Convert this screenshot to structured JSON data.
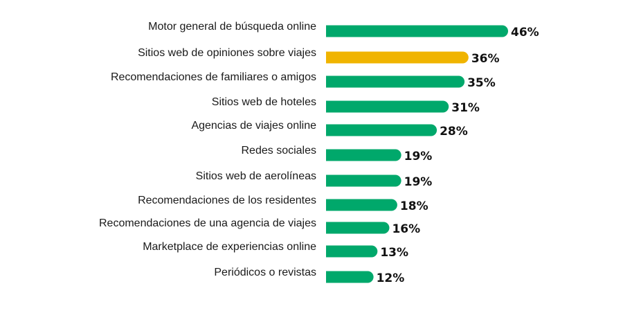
{
  "colors": {
    "default_bar": "#00a86b",
    "highlight_bar": "#f0b400",
    "text": "#1a1a1a"
  },
  "chart_data": {
    "type": "bar",
    "orientation": "horizontal",
    "title": "",
    "xlabel": "",
    "ylabel": "",
    "grid": false,
    "legend": "none",
    "xlim": [
      0,
      46
    ],
    "value_suffix": "%",
    "highlight_index": 1,
    "categories": [
      "Motor general de búsqueda online",
      "Sitios web de opiniones sobre viajes",
      "Recomendaciones de familiares o amigos",
      "Sitios web de hoteles",
      "Agencias de viajes online",
      "Redes sociales",
      "Sitios web de aerolíneas",
      "Recomendaciones de los residentes",
      "Recomendaciones de una agencia de viajes",
      "Marketplace de experiencias online",
      "Periódicos o revistas"
    ],
    "values": [
      46,
      36,
      35,
      31,
      28,
      19,
      19,
      18,
      16,
      13,
      12
    ],
    "value_labels": [
      "46%",
      "36%",
      "35%",
      "31%",
      "28%",
      "19%",
      "19%",
      "18%",
      "16%",
      "13%",
      "12%"
    ]
  }
}
